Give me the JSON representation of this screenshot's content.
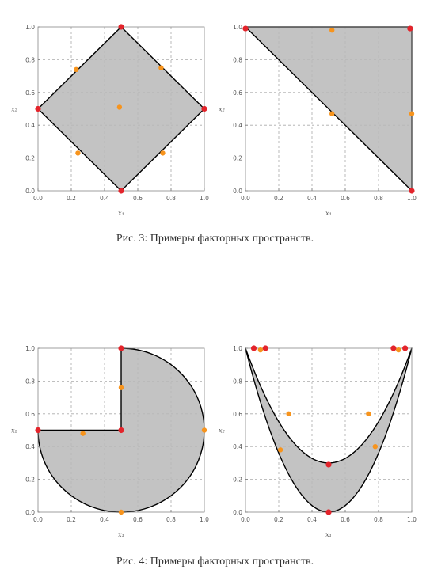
{
  "figures": [
    {
      "caption": "Рис. 3: Примеры факторных пространств."
    },
    {
      "caption": "Рис. 4: Примеры факторных пространств."
    }
  ],
  "colors": {
    "fill": "#b9b9b9",
    "outline": "#000000",
    "vertex_point": "#e3242b",
    "inner_point": "#f7941d",
    "grid": "#aaaaaa"
  },
  "chart_data": [
    {
      "type": "scatter",
      "xlabel": "x₁",
      "ylabel": "x₂",
      "xlim": [
        0,
        1
      ],
      "ylim": [
        0,
        1
      ],
      "xticks": [
        "0.0",
        "0.2",
        "0.4",
        "0.6",
        "0.8",
        "1.0"
      ],
      "yticks": [
        "0.0",
        "0.2",
        "0.4",
        "0.6",
        "0.8",
        "1.0"
      ],
      "grid": true,
      "region": {
        "shape": "polygon",
        "points": [
          [
            0.5,
            1.0
          ],
          [
            1.0,
            0.5
          ],
          [
            0.5,
            0.0
          ],
          [
            0.0,
            0.5
          ]
        ]
      },
      "red_points": [
        [
          0.5,
          1.0
        ],
        [
          1.0,
          0.5
        ],
        [
          0.5,
          0.0
        ],
        [
          0.0,
          0.5
        ]
      ],
      "orange_points": [
        [
          0.23,
          0.74
        ],
        [
          0.74,
          0.75
        ],
        [
          0.49,
          0.51
        ],
        [
          0.24,
          0.23
        ],
        [
          0.75,
          0.23
        ]
      ]
    },
    {
      "type": "scatter",
      "xlabel": "x₁",
      "ylabel": "x₂",
      "xlim": [
        0,
        1
      ],
      "ylim": [
        0,
        1
      ],
      "xticks": [
        "0.0",
        "0.2",
        "0.4",
        "0.6",
        "0.8",
        "1.0"
      ],
      "yticks": [
        "0.0",
        "0.2",
        "0.4",
        "0.6",
        "0.8",
        "1.0"
      ],
      "grid": true,
      "region": {
        "shape": "polygon",
        "points": [
          [
            0.0,
            1.0
          ],
          [
            1.0,
            1.0
          ],
          [
            1.0,
            0.0
          ]
        ]
      },
      "red_points": [
        [
          0.0,
          0.99
        ],
        [
          0.99,
          0.99
        ],
        [
          1.0,
          0.0
        ]
      ],
      "orange_points": [
        [
          0.52,
          0.98
        ],
        [
          0.52,
          0.47
        ],
        [
          1.0,
          0.47
        ]
      ]
    },
    {
      "type": "scatter",
      "xlabel": "x₁",
      "ylabel": "x₂",
      "xlim": [
        0,
        1
      ],
      "ylim": [
        0,
        1
      ],
      "xticks": [
        "0.0",
        "0.2",
        "0.4",
        "0.6",
        "0.8",
        "1.0"
      ],
      "yticks": [
        "0.0",
        "0.2",
        "0.4",
        "0.6",
        "0.8",
        "1.0"
      ],
      "grid": true,
      "region": {
        "shape": "three-quarter-disk",
        "center": [
          0.5,
          0.5
        ],
        "radius": 0.5
      },
      "red_points": [
        [
          0.5,
          1.0
        ],
        [
          0.0,
          0.5
        ],
        [
          0.5,
          0.5
        ]
      ],
      "orange_points": [
        [
          0.5,
          0.76
        ],
        [
          0.27,
          0.48
        ],
        [
          1.0,
          0.5
        ],
        [
          0.5,
          0.0
        ]
      ]
    },
    {
      "type": "scatter",
      "xlabel": "x₁",
      "ylabel": "x₂",
      "xlim": [
        0,
        1
      ],
      "ylim": [
        0,
        1
      ],
      "xticks": [
        "0.0",
        "0.2",
        "0.4",
        "0.6",
        "0.8",
        "1.0"
      ],
      "yticks": [
        "0.0",
        "0.2",
        "0.4",
        "0.6",
        "0.8",
        "1.0"
      ],
      "grid": true,
      "region": {
        "shape": "parabolic-band",
        "outer": "x2 = 4(x1-0.5)^2",
        "inner": "x2 = 0.3 + 2.8(x1-0.5)^2",
        "x_range": [
          0.05,
          0.95
        ]
      },
      "red_points": [
        [
          0.05,
          1.0
        ],
        [
          0.12,
          1.0
        ],
        [
          0.89,
          1.0
        ],
        [
          0.96,
          1.0
        ],
        [
          0.5,
          0.29
        ],
        [
          0.5,
          0.0
        ]
      ],
      "orange_points": [
        [
          0.09,
          0.99
        ],
        [
          0.92,
          0.99
        ],
        [
          0.26,
          0.6
        ],
        [
          0.74,
          0.6
        ],
        [
          0.21,
          0.38
        ],
        [
          0.78,
          0.4
        ]
      ]
    }
  ]
}
